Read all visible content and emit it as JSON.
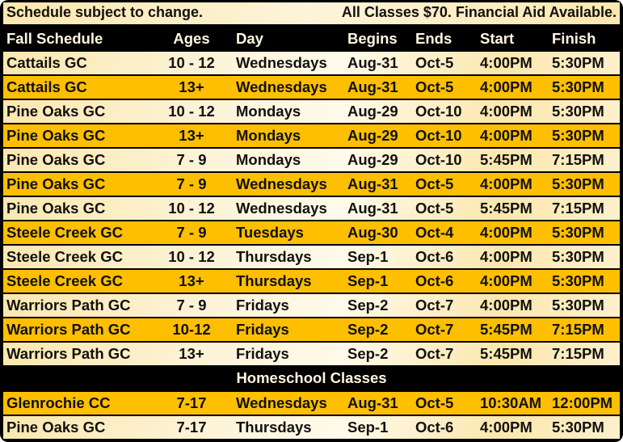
{
  "notice": {
    "left": "Schedule subject to change.",
    "right": "All Classes $70.  Financial Aid Available."
  },
  "headers": {
    "name": "Fall Schedule",
    "ages": "Ages",
    "day": "Day",
    "begins": "Begins",
    "ends": "Ends",
    "start": "Start",
    "finish": "Finish"
  },
  "fall_rows": [
    {
      "name": "Cattails GC",
      "ages": "10 - 12",
      "day": "Wednesdays",
      "begins": "Aug-31",
      "ends": "Oct-5",
      "start": "4:00PM",
      "finish": "5:30PM"
    },
    {
      "name": "Cattails GC",
      "ages": "13+",
      "day": "Wednesdays",
      "begins": "Aug-31",
      "ends": "Oct-5",
      "start": "4:00PM",
      "finish": "5:30PM"
    },
    {
      "name": "Pine Oaks GC",
      "ages": "10 - 12",
      "day": "Mondays",
      "begins": "Aug-29",
      "ends": "Oct-10",
      "start": "4:00PM",
      "finish": "5:30PM"
    },
    {
      "name": "Pine Oaks GC",
      "ages": "13+",
      "day": "Mondays",
      "begins": "Aug-29",
      "ends": "Oct-10",
      "start": "4:00PM",
      "finish": "5:30PM"
    },
    {
      "name": "Pine Oaks GC",
      "ages": "7 - 9",
      "day": "Mondays",
      "begins": "Aug-29",
      "ends": "Oct-10",
      "start": "5:45PM",
      "finish": "7:15PM"
    },
    {
      "name": "Pine Oaks GC",
      "ages": "7 - 9",
      "day": "Wednesdays",
      "begins": "Aug-31",
      "ends": "Oct-5",
      "start": "4:00PM",
      "finish": "5:30PM"
    },
    {
      "name": "Pine Oaks GC",
      "ages": "10 - 12",
      "day": "Wednesdays",
      "begins": "Aug-31",
      "ends": "Oct-5",
      "start": "5:45PM",
      "finish": "7:15PM"
    },
    {
      "name": "Steele Creek GC",
      "ages": "7 - 9",
      "day": "Tuesdays",
      "begins": "Aug-30",
      "ends": "Oct-4",
      "start": "4:00PM",
      "finish": "5:30PM"
    },
    {
      "name": "Steele Creek GC",
      "ages": "10 - 12",
      "day": "Thursdays",
      "begins": "Sep-1",
      "ends": "Oct-6",
      "start": "4:00PM",
      "finish": "5:30PM"
    },
    {
      "name": "Steele Creek GC",
      "ages": "13+",
      "day": "Thursdays",
      "begins": "Sep-1",
      "ends": "Oct-6",
      "start": "4:00PM",
      "finish": "5:30PM"
    },
    {
      "name": "Warriors Path GC",
      "ages": "7 - 9",
      "day": "Fridays",
      "begins": "Sep-2",
      "ends": "Oct-7",
      "start": "4:00PM",
      "finish": "5:30PM"
    },
    {
      "name": "Warriors Path GC",
      "ages": "10-12",
      "day": "Fridays",
      "begins": "Sep-2",
      "ends": "Oct-7",
      "start": "5:45PM",
      "finish": "7:15PM"
    },
    {
      "name": "Warriors Path GC",
      "ages": "13+",
      "day": "Fridays",
      "begins": "Sep-2",
      "ends": "Oct-7",
      "start": "5:45PM",
      "finish": "7:15PM"
    }
  ],
  "homeschool_title": "Homeschool Classes",
  "homeschool_rows": [
    {
      "name": "Glenrochie CC",
      "ages": "7-17",
      "day": "Wednesdays",
      "begins": "Aug-31",
      "ends": "Oct-5",
      "start": "10:30AM",
      "finish": "12:00PM"
    },
    {
      "name": "Pine Oaks GC",
      "ages": "7-17",
      "day": "Thursdays",
      "begins": "Sep-1",
      "ends": "Oct-6",
      "start": "4:00PM",
      "finish": "5:30PM"
    }
  ],
  "colors": {
    "gold_row": "#fdbf00",
    "light_row": "#fdf0cc",
    "header": "#000000"
  }
}
